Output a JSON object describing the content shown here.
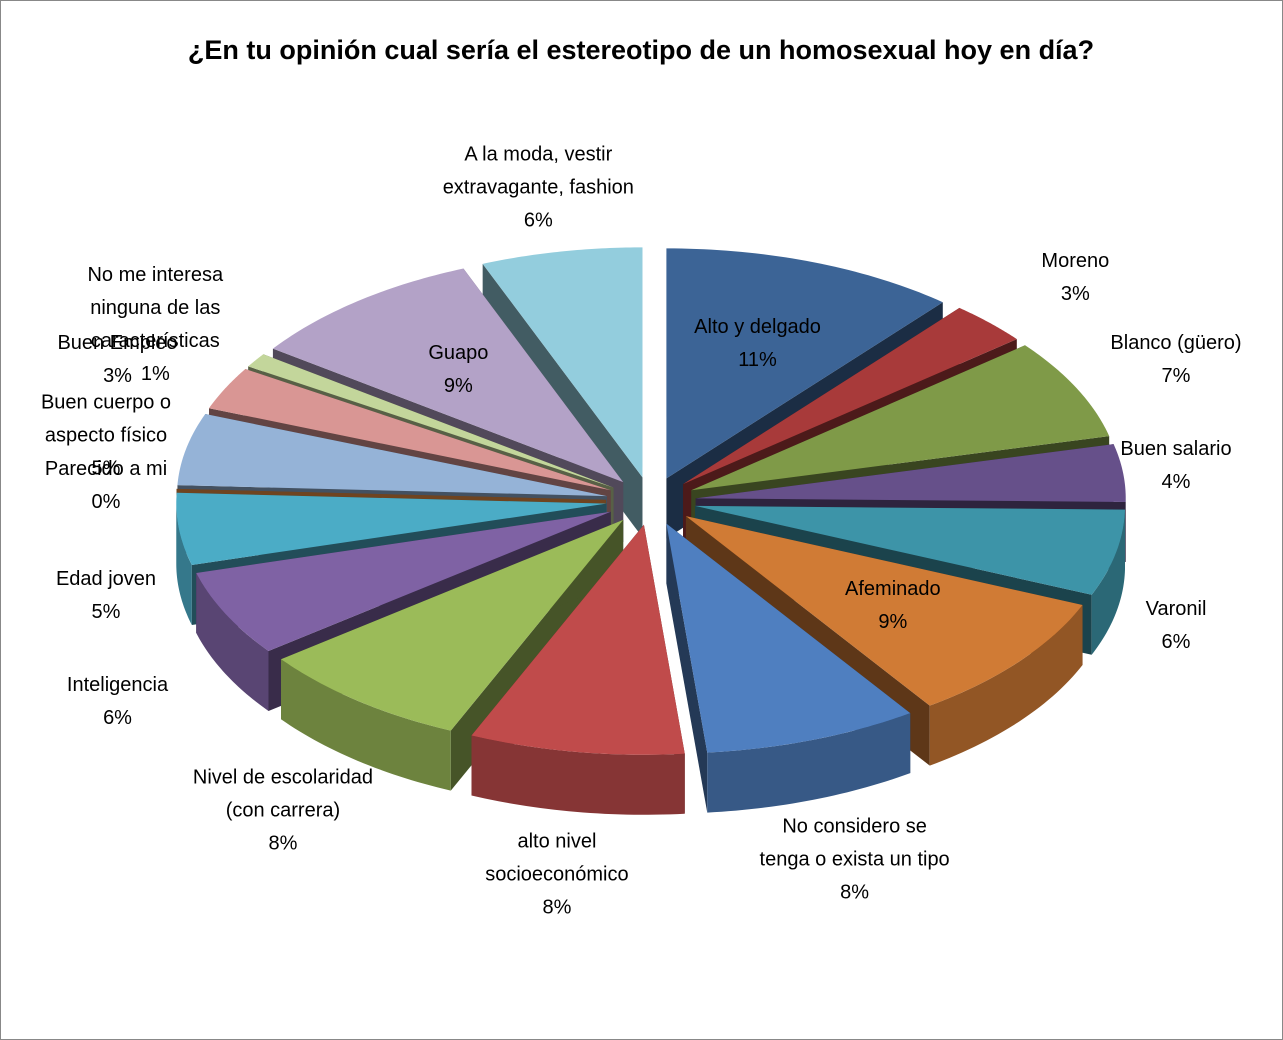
{
  "chart_data": {
    "type": "pie3d",
    "title": "¿En tu opinión cual sería el estereotipo de un homosexual hoy en día?",
    "categories": [
      "Alto y delgado",
      "Moreno",
      "Blanco (güero)",
      "Buen salario",
      "Varonil",
      "Afeminado",
      "No considero se tenga o  exista un tipo",
      "alto nivel socioeconómico",
      "Nivel de escolaridad (con carrera)",
      "Inteligencia",
      "Edad joven",
      "Parecido a mi",
      "Buen cuerpo o aspecto físico",
      "Buen Empleo",
      "No me interesa ninguna de las características",
      "Guapo",
      "A la moda, vestir extravagante, fashion"
    ],
    "values": [
      11,
      3,
      7,
      4,
      6,
      9,
      8,
      8,
      8,
      6,
      5,
      0,
      5,
      3,
      1,
      9,
      6
    ],
    "value_labels": [
      "11%",
      "3%",
      "7%",
      "4%",
      "6%",
      "9%",
      "8%",
      "8%",
      "8%",
      "6%",
      "5%",
      "0%",
      "5%",
      "3%",
      "1%",
      "9%",
      "6%"
    ],
    "colors": [
      "#3c6496",
      "#a83a3a",
      "#7f9a48",
      "#66508a",
      "#3d94a8",
      "#d07b35",
      "#4f7fc0",
      "#c04b4b",
      "#9bbb59",
      "#7f62a4",
      "#4bacc6",
      "#f79646",
      "#95b3d7",
      "#d99694",
      "#c3d69b",
      "#b3a2c7",
      "#93cddd"
    ]
  }
}
